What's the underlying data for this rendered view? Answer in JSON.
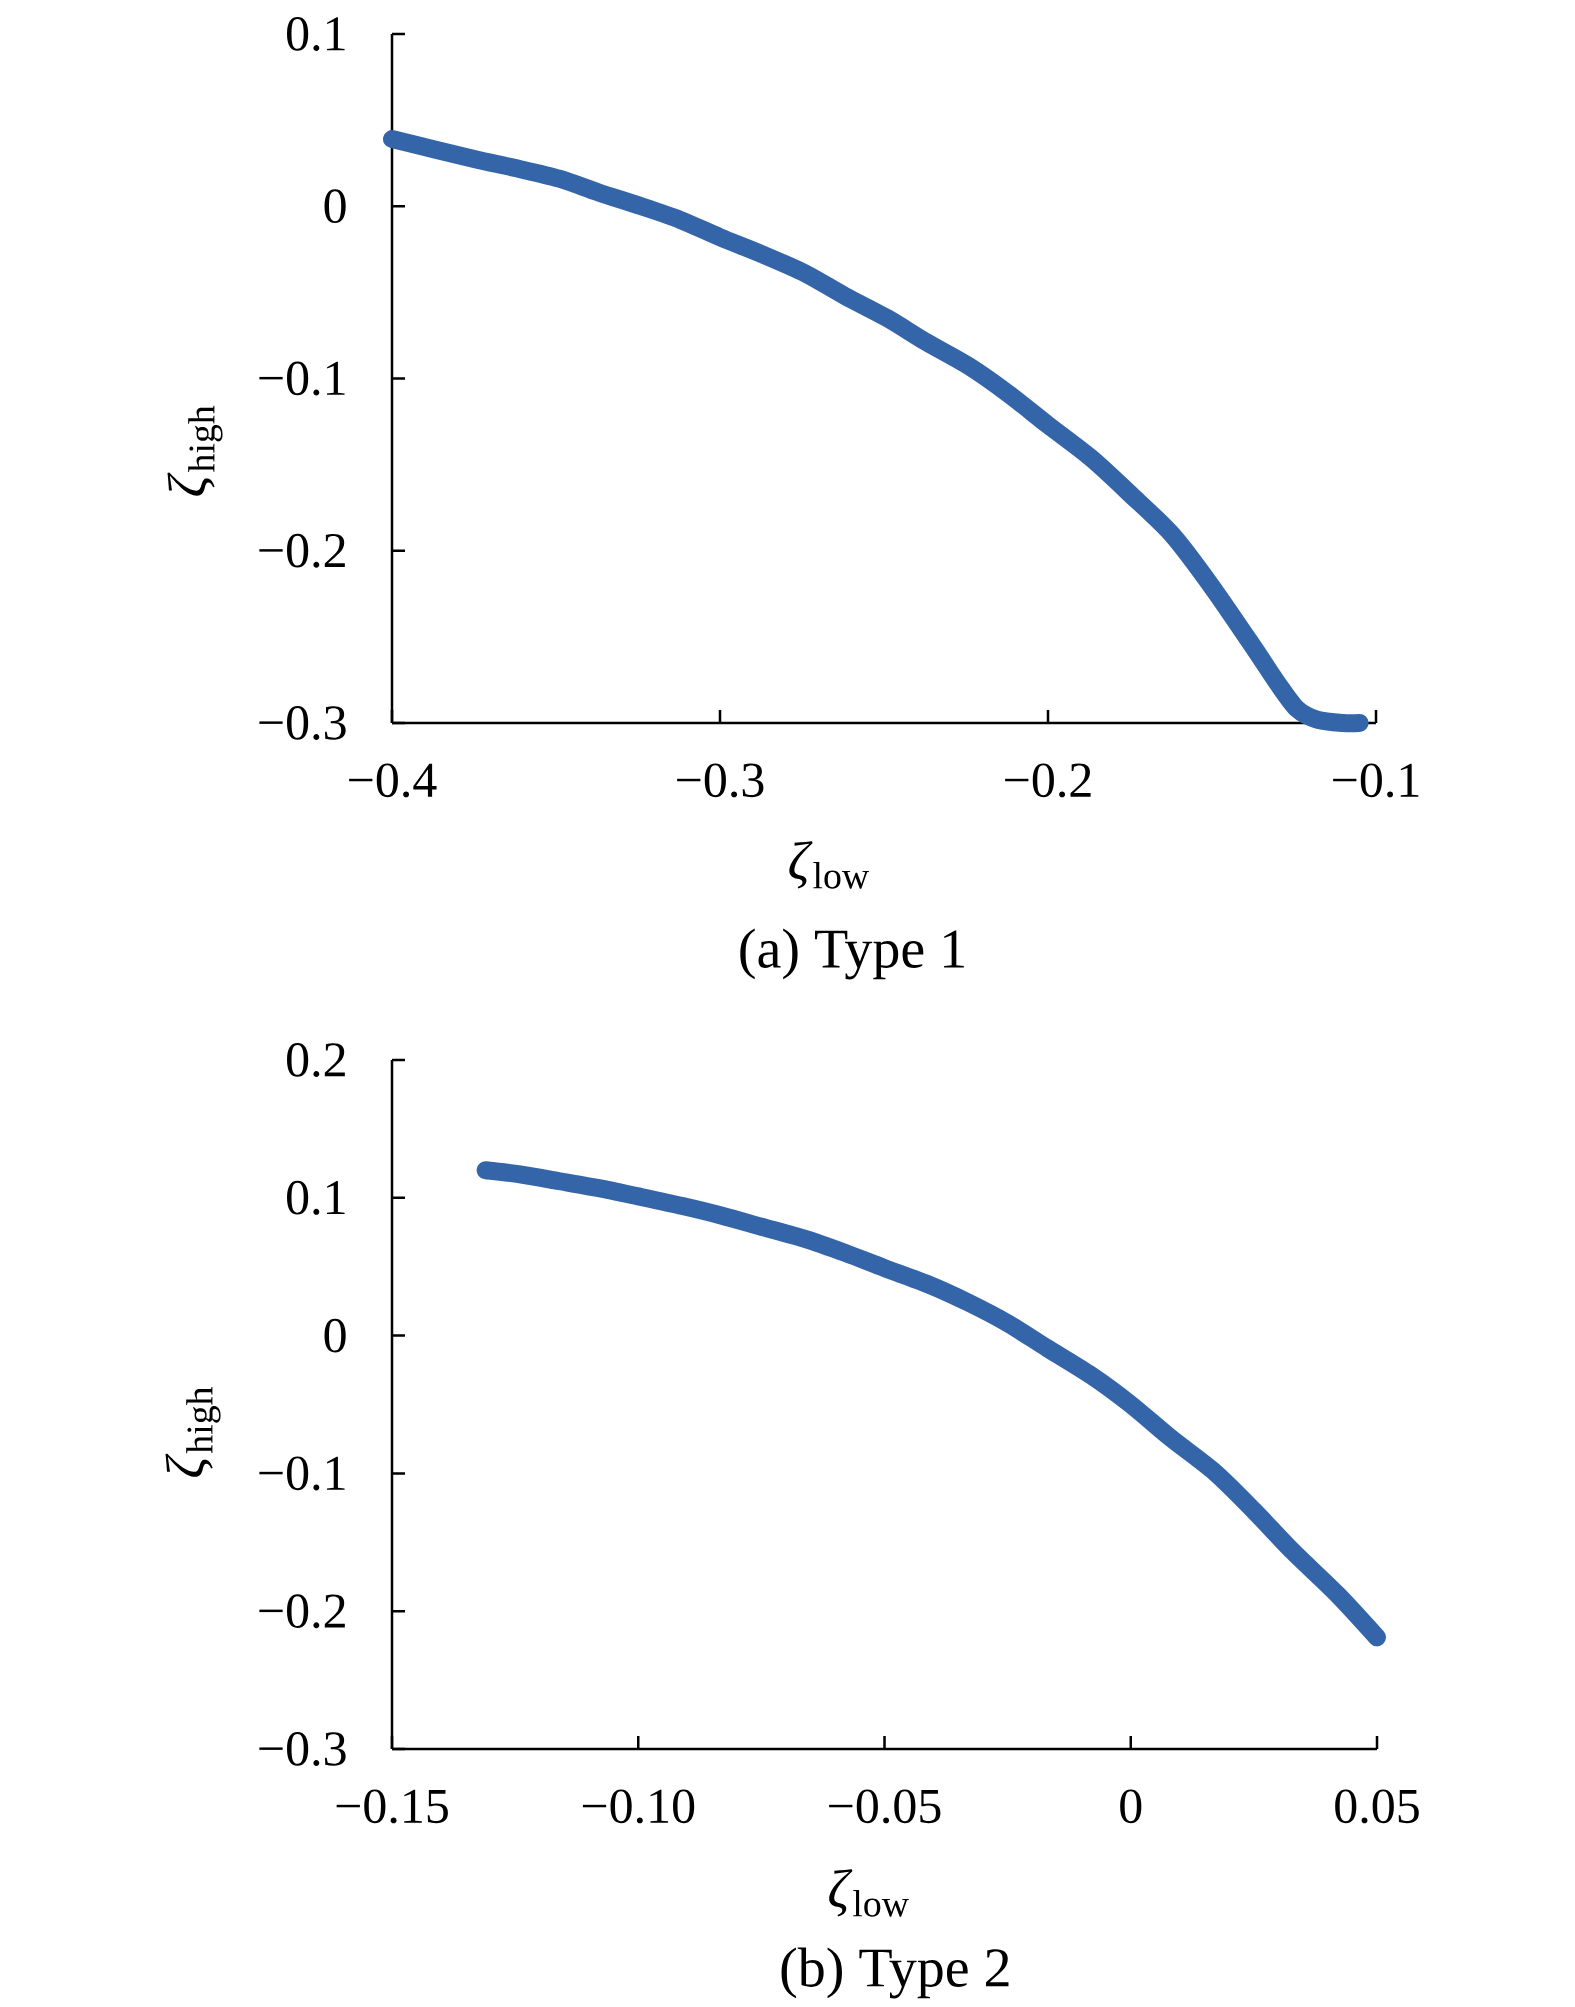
{
  "chart_data": [
    {
      "type": "line",
      "title": "(a) Type 1",
      "xlabel": "*ζ*$_{low}$",
      "ylabel": "*ζ*$_{high}$",
      "x": [
        -0.4,
        -0.387,
        -0.374,
        -0.362,
        -0.349,
        -0.337,
        -0.324,
        -0.312,
        -0.3,
        -0.287,
        -0.274,
        -0.262,
        -0.249,
        -0.237,
        -0.224,
        -0.212,
        -0.2,
        -0.187,
        -0.175,
        -0.162,
        -0.15,
        -0.137,
        -0.13,
        -0.124,
        -0.118,
        -0.11,
        -0.105
      ],
      "series": [
        {
          "color": "#3565a9",
          "values": [
            0.039,
            0.033,
            0.027,
            0.022,
            0.016,
            0.008,
            0.0,
            -0.008,
            -0.018,
            -0.028,
            -0.039,
            -0.052,
            -0.065,
            -0.079,
            -0.093,
            -0.109,
            -0.127,
            -0.146,
            -0.167,
            -0.191,
            -0.221,
            -0.257,
            -0.277,
            -0.292,
            -0.298,
            -0.3,
            -0.3
          ]
        }
      ],
      "xlim": [
        -0.4,
        -0.1
      ],
      "ylim": [
        -0.3,
        0.1
      ],
      "xticks": [
        {
          "value": -0.4,
          "label": "−0.4"
        },
        {
          "value": -0.3,
          "label": "−0.3"
        },
        {
          "value": -0.2,
          "label": "−0.2"
        },
        {
          "value": -0.1,
          "label": "−0.1"
        }
      ],
      "yticks": [
        {
          "value": -0.3,
          "label": "−0.3"
        },
        {
          "value": -0.2,
          "label": "−0.2"
        },
        {
          "value": -0.1,
          "label": "−0.1"
        },
        0,
        0.1
      ]
    },
    {
      "type": "line",
      "title": "(b) Type 2",
      "xlabel": "*ζ*$_{low}$",
      "ylabel": "*ζ*$_{high}$",
      "x": [
        -0.131,
        -0.124,
        -0.116,
        -0.108,
        -0.1,
        -0.091,
        -0.083,
        -0.075,
        -0.066,
        -0.058,
        -0.05,
        -0.041,
        -0.033,
        -0.025,
        -0.017,
        -0.008,
        0.0,
        0.008,
        0.017,
        0.025,
        0.033,
        0.042,
        0.05
      ],
      "series": [
        {
          "color": "#3565a9",
          "values": [
            0.12,
            0.117,
            0.112,
            0.107,
            0.101,
            0.094,
            0.087,
            0.079,
            0.07,
            0.06,
            0.049,
            0.037,
            0.024,
            0.009,
            -0.009,
            -0.029,
            -0.05,
            -0.074,
            -0.099,
            -0.127,
            -0.157,
            -0.188,
            -0.219
          ]
        }
      ],
      "xlim": [
        -0.15,
        0.05
      ],
      "ylim": [
        -0.3,
        0.2
      ],
      "xticks": [
        {
          "value": -0.15,
          "label": "−0.15"
        },
        {
          "value": -0.1,
          "label": "−0.10"
        },
        {
          "value": -0.05,
          "label": "−0.05"
        },
        0,
        0.05
      ],
      "yticks": [
        {
          "value": -0.3,
          "label": "−0.3"
        },
        {
          "value": -0.2,
          "label": "−0.2"
        },
        {
          "value": -0.1,
          "label": "−0.1"
        },
        0,
        0.1,
        0.2
      ]
    }
  ]
}
